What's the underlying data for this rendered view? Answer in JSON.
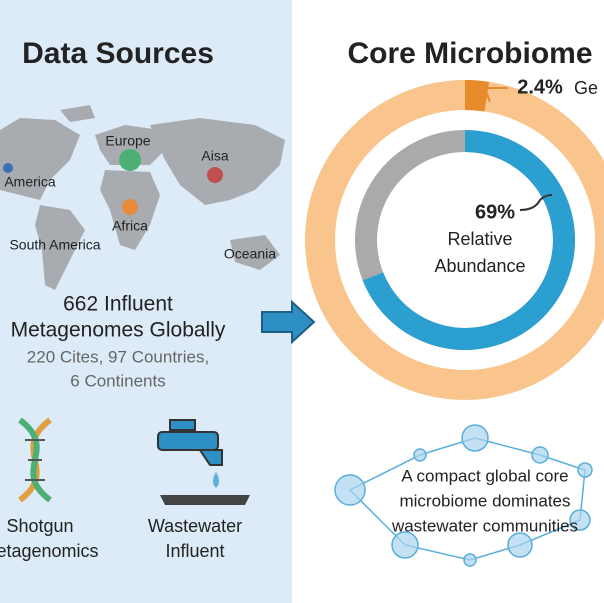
{
  "left_panel": {
    "title": "Data Sources",
    "map_labels": [
      "America",
      "Europe",
      "Aisa",
      "Africa",
      "South America",
      "Oceania"
    ],
    "summary": [
      "662 Influent",
      "Metagenomes Globally",
      "220 Cites, 97 Countries,",
      "6 Continents"
    ],
    "sources": [
      {
        "lines": [
          "Shotgun",
          "Metagenomics"
        ]
      },
      {
        "lines": [
          "Wastewater",
          "Influent"
        ]
      }
    ]
  },
  "right_panel": {
    "title": "Core Microbiome",
    "genus_share": {
      "value": 2.4,
      "label": "2.4%",
      "unit": "Ge"
    },
    "relative_abundance": {
      "value": 69,
      "label": "69%",
      "caption": [
        "Relative",
        "Abundance"
      ]
    },
    "conclusion": [
      "A compact global core",
      "microbiome dominates",
      "wastewater communities"
    ]
  }
}
